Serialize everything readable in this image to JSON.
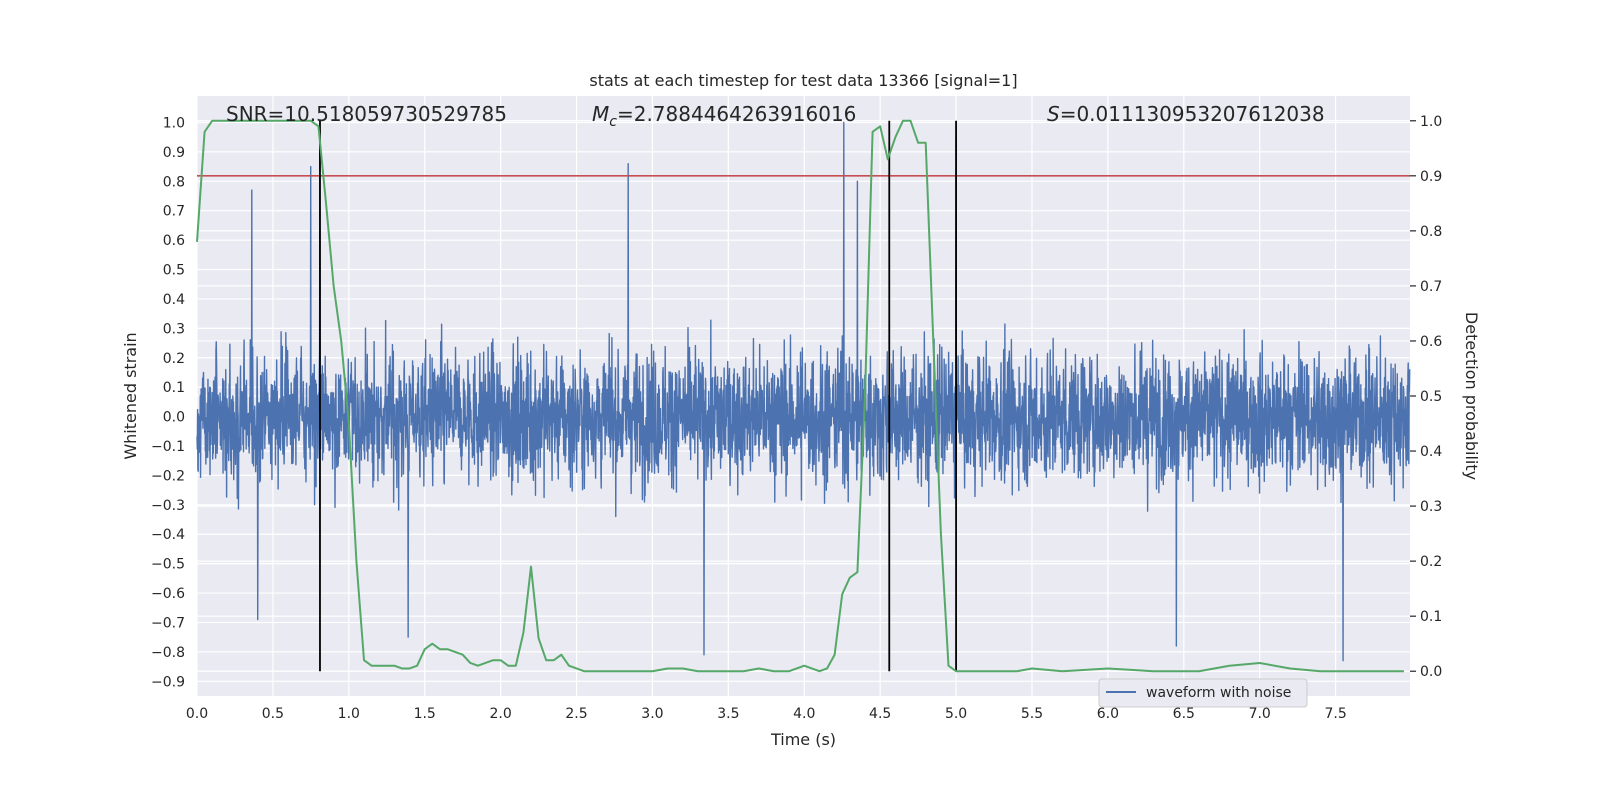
{
  "chart_data": {
    "type": "line",
    "title": "stats at each timestep for test data 13366 [signal=1]",
    "xlabel": "Time (s)",
    "ylabel": "Whitened strain",
    "y2label": "Detection probability",
    "xlim": [
      0.0,
      7.99
    ],
    "ylim": [
      -0.95,
      1.09
    ],
    "y2lim": [
      -0.045,
      1.045
    ],
    "x_ticks": [
      0.0,
      0.5,
      1.0,
      1.5,
      2.0,
      2.5,
      3.0,
      3.5,
      4.0,
      4.5,
      5.0,
      5.5,
      6.0,
      6.5,
      7.0,
      7.5
    ],
    "x_tick_labels": [
      "0.0",
      "0.5",
      "1.0",
      "1.5",
      "2.0",
      "2.5",
      "3.0",
      "3.5",
      "4.0",
      "4.5",
      "5.0",
      "5.5",
      "6.0",
      "6.5",
      "7.0",
      "7.5"
    ],
    "y_ticks": [
      1.0,
      0.9,
      0.8,
      0.7,
      0.6,
      0.5,
      0.4,
      0.3,
      0.2,
      0.1,
      0.0,
      -0.1,
      -0.2,
      -0.3,
      -0.4,
      -0.5,
      -0.6,
      -0.7,
      -0.8,
      -0.9
    ],
    "y_tick_labels": [
      "1.0",
      "0.9",
      "0.8",
      "0.7",
      "0.6",
      "0.5",
      "0.4",
      "0.3",
      "0.2",
      "0.1",
      "0.0",
      "−0.1",
      "−0.2",
      "−0.3",
      "−0.4",
      "−0.5",
      "−0.6",
      "−0.7",
      "−0.8",
      "−0.9"
    ],
    "y2_ticks": [
      1.0,
      0.9,
      0.8,
      0.7,
      0.6,
      0.5,
      0.4,
      0.3,
      0.2,
      0.1,
      0.0
    ],
    "y2_tick_labels": [
      "1.0",
      "0.9",
      "0.8",
      "0.7",
      "0.6",
      "0.5",
      "0.4",
      "0.3",
      "0.2",
      "0.1",
      "0.0"
    ],
    "grid": true,
    "legend": {
      "placement": "lower-right",
      "entries": [
        "waveform with noise"
      ]
    },
    "annotations": {
      "snr": "SNR=10.518059730529785",
      "mc_symbol": "M",
      "mc_sub": "c",
      "mc_value": "=2.7884464263916016",
      "s_symbol": "S",
      "s_value": "=0.011130953207612038"
    },
    "threshold_line": {
      "y2": 0.9,
      "color": "#c44e52"
    },
    "vertical_lines": [
      0.81,
      4.56,
      5.0
    ],
    "waveform": {
      "name": "waveform with noise",
      "color": "#4c72b0",
      "duration": 7.99,
      "typical_amplitude": 0.28,
      "peaks": [
        {
          "x": 0.36,
          "y": 0.77
        },
        {
          "x": 0.75,
          "y": 0.85
        },
        {
          "x": 0.81,
          "y": 0.95
        },
        {
          "x": 2.84,
          "y": 0.86
        },
        {
          "x": 4.26,
          "y": 1.0
        },
        {
          "x": 4.35,
          "y": 0.8
        },
        {
          "x": 5.0,
          "y": 0.95
        },
        {
          "x": 1.39,
          "y": -0.75
        },
        {
          "x": 3.34,
          "y": -0.81
        },
        {
          "x": 7.55,
          "y": -0.83
        },
        {
          "x": 6.45,
          "y": -0.78
        },
        {
          "x": 0.4,
          "y": -0.69
        }
      ],
      "color_name": "blue"
    },
    "series": [
      {
        "color": "#55a868",
        "x": [
          0.0,
          0.05,
          0.1,
          0.15,
          0.2,
          0.3,
          0.4,
          0.5,
          0.6,
          0.7,
          0.75,
          0.8,
          0.85,
          0.9,
          0.95,
          1.0,
          1.05,
          1.1,
          1.15,
          1.2,
          1.3,
          1.35,
          1.4,
          1.45,
          1.5,
          1.55,
          1.6,
          1.65,
          1.7,
          1.75,
          1.8,
          1.85,
          1.9,
          1.95,
          2.0,
          2.05,
          2.1,
          2.15,
          2.2,
          2.25,
          2.3,
          2.35,
          2.4,
          2.45,
          2.5,
          2.55,
          2.6,
          2.65,
          2.7,
          2.8,
          2.9,
          3.0,
          3.1,
          3.2,
          3.3,
          3.4,
          3.5,
          3.6,
          3.7,
          3.8,
          3.9,
          4.0,
          4.05,
          4.1,
          4.15,
          4.2,
          4.25,
          4.3,
          4.35,
          4.4,
          4.45,
          4.5,
          4.55,
          4.6,
          4.65,
          4.7,
          4.75,
          4.8,
          4.85,
          4.9,
          4.95,
          5.0,
          5.05,
          5.1,
          5.15,
          5.2,
          5.25,
          5.3,
          5.4,
          5.5,
          5.7,
          6.0,
          6.3,
          6.6,
          6.7,
          6.8,
          7.0,
          7.2,
          7.4,
          7.45,
          7.5,
          7.6,
          7.7,
          7.8,
          7.95
        ],
        "y": [
          0.78,
          0.98,
          1.0,
          1.0,
          1.0,
          1.0,
          1.0,
          1.0,
          1.0,
          1.0,
          1.0,
          0.99,
          0.85,
          0.7,
          0.6,
          0.45,
          0.2,
          0.02,
          0.01,
          0.01,
          0.01,
          0.005,
          0.005,
          0.01,
          0.04,
          0.05,
          0.04,
          0.04,
          0.035,
          0.03,
          0.015,
          0.01,
          0.015,
          0.02,
          0.02,
          0.01,
          0.01,
          0.07,
          0.19,
          0.06,
          0.02,
          0.02,
          0.03,
          0.01,
          0.005,
          0.0,
          0.0,
          0.0,
          0.0,
          0.0,
          0.0,
          0.0,
          0.005,
          0.005,
          0.0,
          0.0,
          0.0,
          0.0,
          0.005,
          0.0,
          0.0,
          0.01,
          0.005,
          0.0,
          0.005,
          0.03,
          0.14,
          0.17,
          0.18,
          0.5,
          0.98,
          0.99,
          0.93,
          0.97,
          1.0,
          1.0,
          0.96,
          0.96,
          0.6,
          0.25,
          0.01,
          0.0,
          0.0,
          0.0,
          0.0,
          0.0,
          0.0,
          0.0,
          0.0,
          0.005,
          0.0,
          0.005,
          0.0,
          0.0,
          0.005,
          0.01,
          0.015,
          0.005,
          0.0,
          0.0,
          0.0,
          0.0,
          0.0,
          0.0,
          0.0
        ]
      }
    ]
  }
}
